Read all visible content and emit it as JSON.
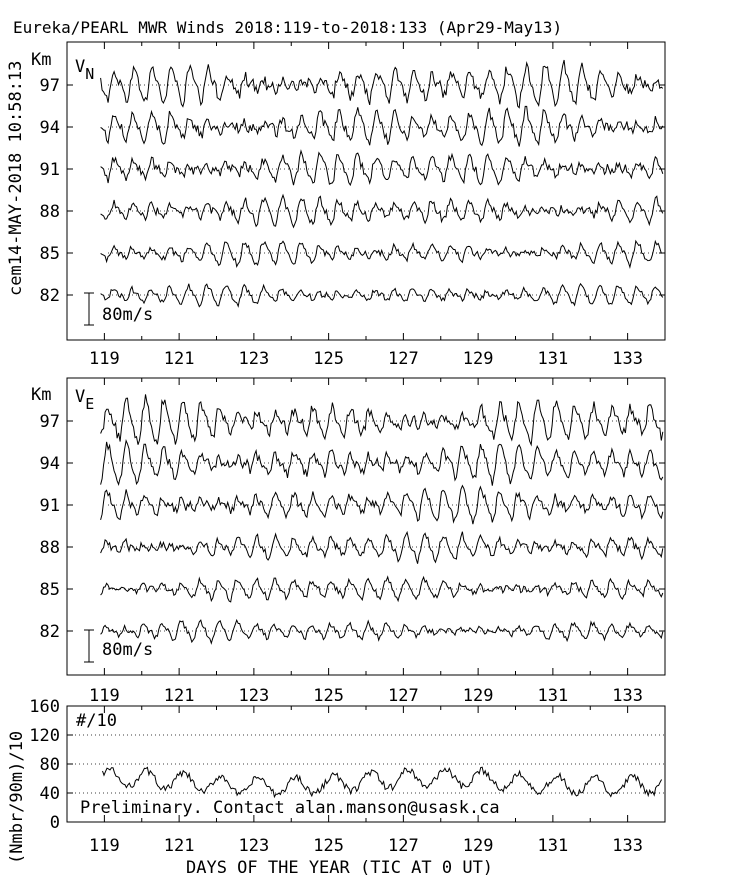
{
  "title": "Eureka/PEARL MWR Winds 2018:119-to-2018:133 (Apr29-May13)",
  "side_label": "cem14-MAY-2018 10:58:13",
  "x_label": "DAYS OF THE YEAR (TIC AT 0 UT)",
  "note": "Preliminary. Contact alan.manson@usask.ca",
  "colors": {
    "line": "#000000",
    "background": "#ffffff",
    "grid": "#000000"
  },
  "chart_data": [
    {
      "type": "line",
      "panel": "north",
      "component_label": "V",
      "component_sub": "N",
      "ylabel": "Km",
      "scale_bar_label": "80m/s",
      "scale_bar_ms": 80,
      "x_ticks": [
        "119",
        "121",
        "123",
        "125",
        "127",
        "129",
        "131",
        "133"
      ],
      "xlim": [
        118,
        134
      ],
      "heights_km": [
        "97",
        "94",
        "91",
        "88",
        "85",
        "82"
      ],
      "series_amplitude_ms": [
        55,
        48,
        42,
        36,
        30,
        26
      ],
      "dominant_period_days": 0.5,
      "grid": "dotted reference line at each height"
    },
    {
      "type": "line",
      "panel": "east",
      "component_label": "V",
      "component_sub": "E",
      "ylabel": "Km",
      "scale_bar_label": "80m/s",
      "scale_bar_ms": 80,
      "x_ticks": [
        "119",
        "121",
        "123",
        "125",
        "127",
        "129",
        "131",
        "133"
      ],
      "xlim": [
        118,
        134
      ],
      "heights_km": [
        "97",
        "94",
        "91",
        "88",
        "85",
        "82"
      ],
      "series_amplitude_ms": [
        55,
        48,
        42,
        36,
        30,
        26
      ],
      "dominant_period_days": 0.5,
      "grid": "dotted reference line at each height"
    },
    {
      "type": "line",
      "panel": "meteor-count",
      "label": "#/10",
      "ylabel": "(Nmbr/90m)/10",
      "y_ticks": [
        "160",
        "120",
        "80",
        "40",
        "0"
      ],
      "ylim": [
        0,
        160
      ],
      "x_ticks": [
        "119",
        "121",
        "123",
        "125",
        "127",
        "129",
        "131",
        "133"
      ],
      "xlim": [
        118,
        134
      ],
      "gridlines_y": [
        40,
        80,
        120
      ],
      "series_mean": 55,
      "series_range": [
        30,
        90
      ]
    }
  ]
}
